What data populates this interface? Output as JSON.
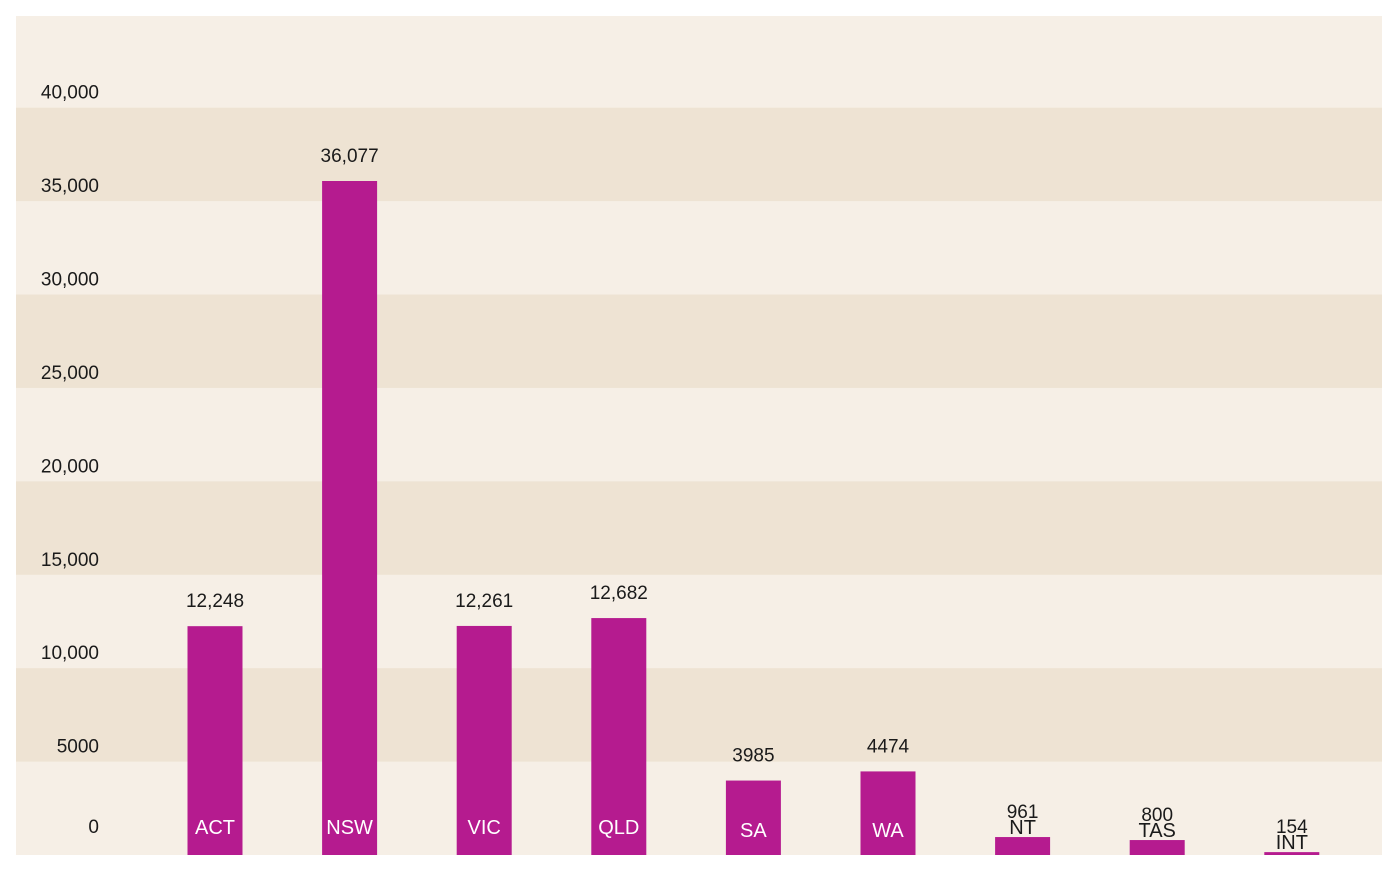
{
  "chart_data": {
    "type": "bar",
    "categories": [
      "ACT",
      "NSW",
      "VIC",
      "QLD",
      "SA",
      "WA",
      "NT",
      "TAS",
      "INT"
    ],
    "values": [
      12248,
      36077,
      12261,
      12682,
      3985,
      4474,
      961,
      800,
      154
    ],
    "data_labels": [
      "12,248",
      "36,077",
      "12,261",
      "12,682",
      "3985",
      "4474",
      "961",
      "800",
      "154"
    ],
    "y_ticks": [
      0,
      5000,
      10000,
      15000,
      20000,
      25000,
      30000,
      35000,
      40000
    ],
    "y_tick_labels": [
      "0",
      "5000",
      "10,000",
      "15,000",
      "20,000",
      "25,000",
      "30,000",
      "35,000",
      "40,000"
    ],
    "ylim": [
      0,
      45000
    ],
    "grid": "alternating horizontal bands",
    "legend": "none",
    "title": "",
    "xlabel": "",
    "ylabel": "",
    "colors": {
      "bar": "#b51b8f",
      "band_light": "#f6efe6",
      "band_dark": "#eee3d3",
      "label_inside": "#ffffff",
      "label_outside": "#1a1a1a"
    }
  }
}
